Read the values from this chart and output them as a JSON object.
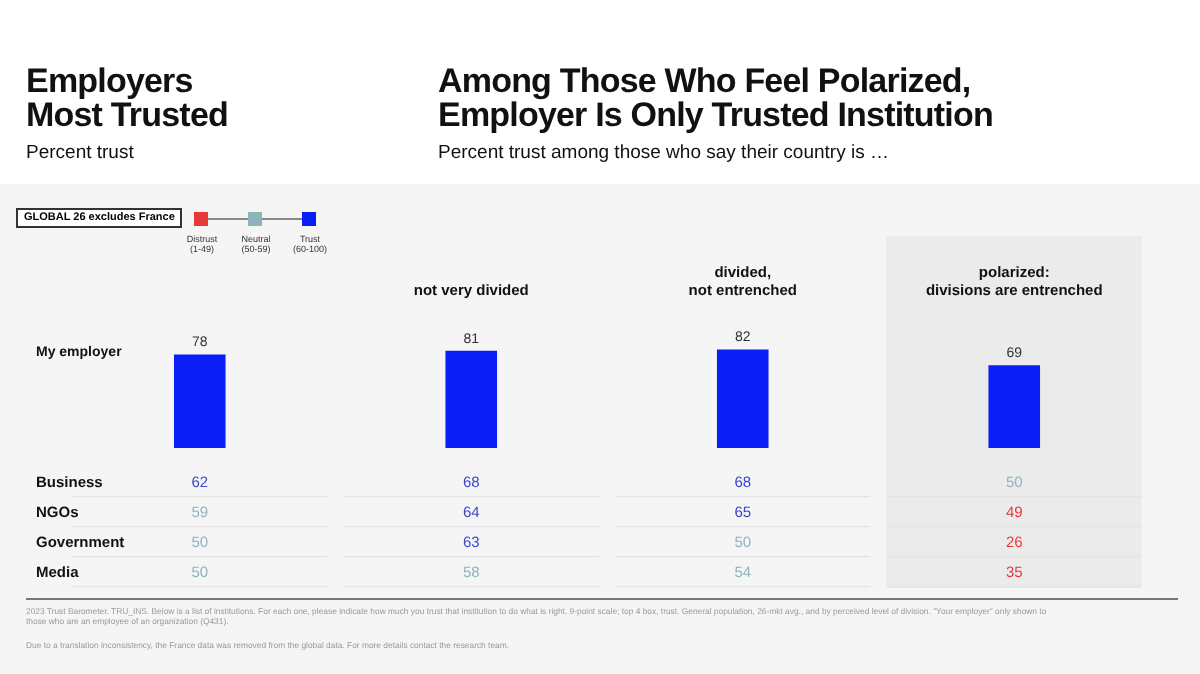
{
  "chart_data": [
    {
      "type": "bar",
      "title": "Among Those Who Feel Polarized,\nEmployer Is Only Trusted Institution",
      "subtitle": "Percent trust among those who say their country is …",
      "categories": [
        null,
        "not very divided",
        "divided,\nnot entrenched",
        "polarized:\ndivisions are entrenched"
      ],
      "series": [
        {
          "name": "My employer",
          "color": "#0a1ef5",
          "values": [
            78,
            81,
            82,
            69
          ]
        }
      ],
      "tick_labels": "x",
      "data_labels": true,
      "bands": [
        {
          "axis": "x",
          "from": "polarized:\ndivisions are entrenched",
          "to": "polarized:\ndivisions are entrenched",
          "color": "#ebebeb"
        }
      ],
      "annotations": [
        "Employers\nMost Trusted",
        "Percent trust",
        "GLOBAL 26 excludes France",
        "Distrust\n(1-49)",
        "Neutral\n(50-59)",
        "Trust\n(60-100)",
        "2023 Trust Barometer. TRU_INS. Below is a list of institutions. For each one, please indicate how much you trust that institution to do what is right. 9-point scale; top 4 box, trust. General population, 26-mkt avg., and by perceived level of division. \"Your employer\" only shown to those who are an employee of an organization (Q431).",
        "Due to a translation inconsistency, the France data was removed from the global data. For more details contact the research team."
      ]
    },
    {
      "type": "heatmap",
      "categories": [
        null,
        "not very divided",
        "divided,\nnot entrenched",
        "polarized:\ndivisions are entrenched"
      ],
      "y_categories": [
        "Business",
        "NGOs",
        "Government",
        "Media"
      ],
      "cells": [
        [
          62,
          68,
          68,
          50
        ],
        [
          59,
          64,
          65,
          49
        ],
        [
          50,
          63,
          50,
          26
        ],
        [
          50,
          58,
          54,
          35
        ]
      ],
      "colors": [
        [
          "#3a46c8",
          "#3a46c8",
          "#3a46c8",
          "#8fb3bb"
        ],
        [
          "#8fb3bb",
          "#3a46c8",
          "#3a46c8",
          "#e8393a"
        ],
        [
          "#8fb3bb",
          "#3a46c8",
          "#8fb3bb",
          "#e8393a"
        ],
        [
          "#8fb3bb",
          "#8fb3bb",
          "#8fb3bb",
          "#e8393a"
        ]
      ],
      "tick_labels": "y",
      "data_labels": true,
      "bands": [
        {
          "axis": "x",
          "from": "polarized:\ndivisions are entrenched",
          "to": "polarized:\ndivisions are entrenched",
          "color": "#ebebeb"
        }
      ]
    }
  ]
}
